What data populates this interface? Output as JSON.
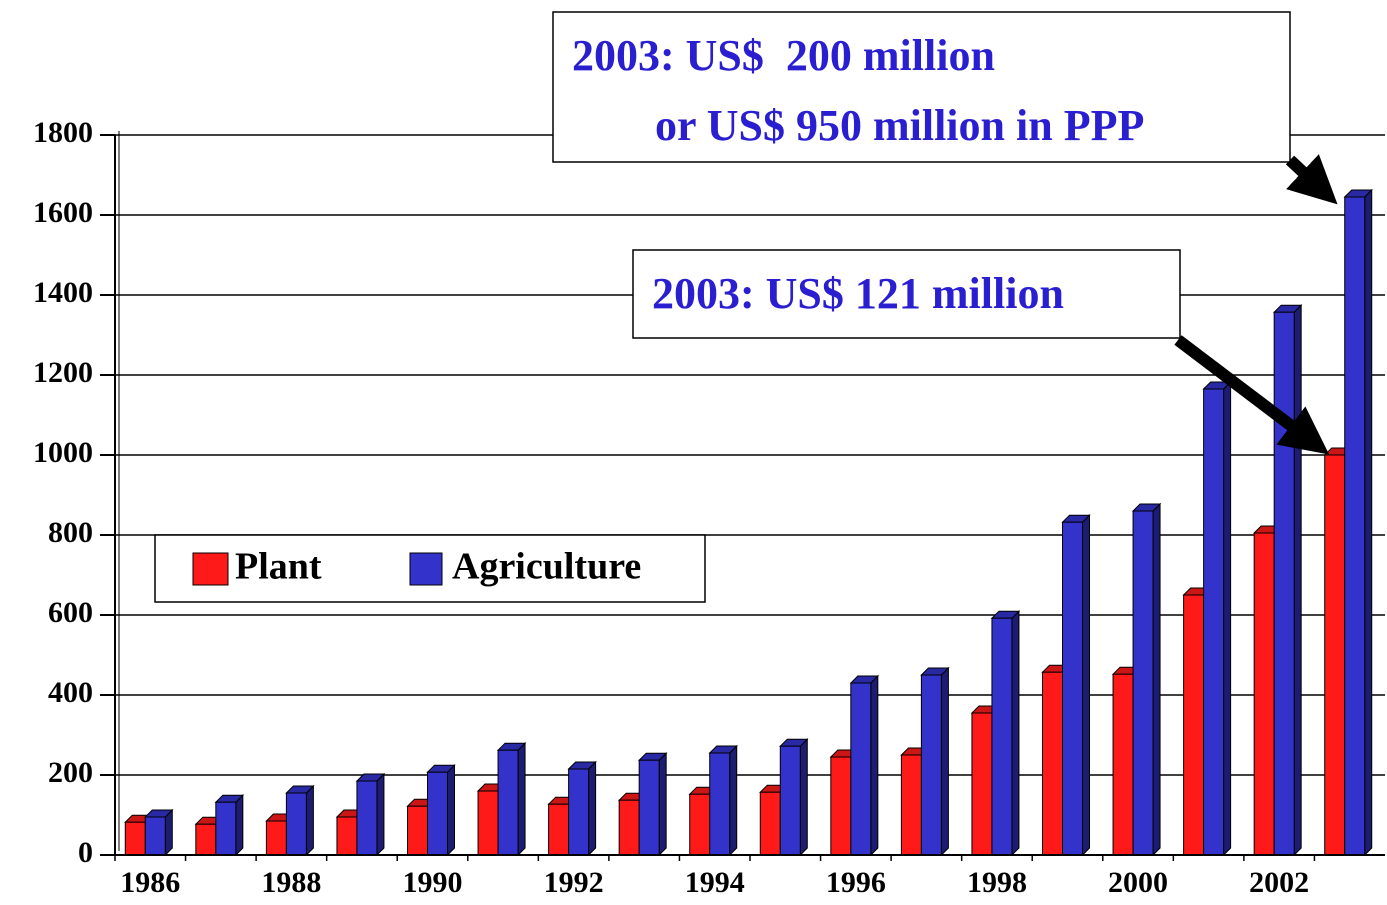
{
  "chart_data": {
    "type": "bar",
    "categories": [
      "1986",
      null,
      "1988",
      null,
      "1990",
      null,
      "1992",
      null,
      "1994",
      null,
      "1996",
      null,
      "1998",
      null,
      "2000",
      null,
      "2002",
      null
    ],
    "series": [
      {
        "name": "Plant",
        "color": "#ff1a1a",
        "values": [
          82,
          77,
          85,
          95,
          122,
          160,
          127,
          137,
          152,
          157,
          245,
          250,
          355,
          457,
          452,
          650,
          805,
          1000
        ]
      },
      {
        "name": "Agriculture",
        "color": "#3333cc",
        "values": [
          95,
          132,
          155,
          185,
          207,
          262,
          215,
          237,
          255,
          272,
          430,
          450,
          592,
          832,
          860,
          1165,
          1357,
          1645
        ]
      }
    ],
    "ylim": [
      0,
      1800
    ],
    "yticks": [
      0,
      200,
      400,
      600,
      800,
      1000,
      1200,
      1400,
      1600,
      1800
    ],
    "grid": true,
    "legend": "left",
    "annotations": [
      {
        "lines": [
          "2003: US$  200 million",
          "or US$ 950 million in PPP"
        ]
      },
      {
        "lines": [
          "2003: US$ 121 million"
        ]
      }
    ]
  }
}
